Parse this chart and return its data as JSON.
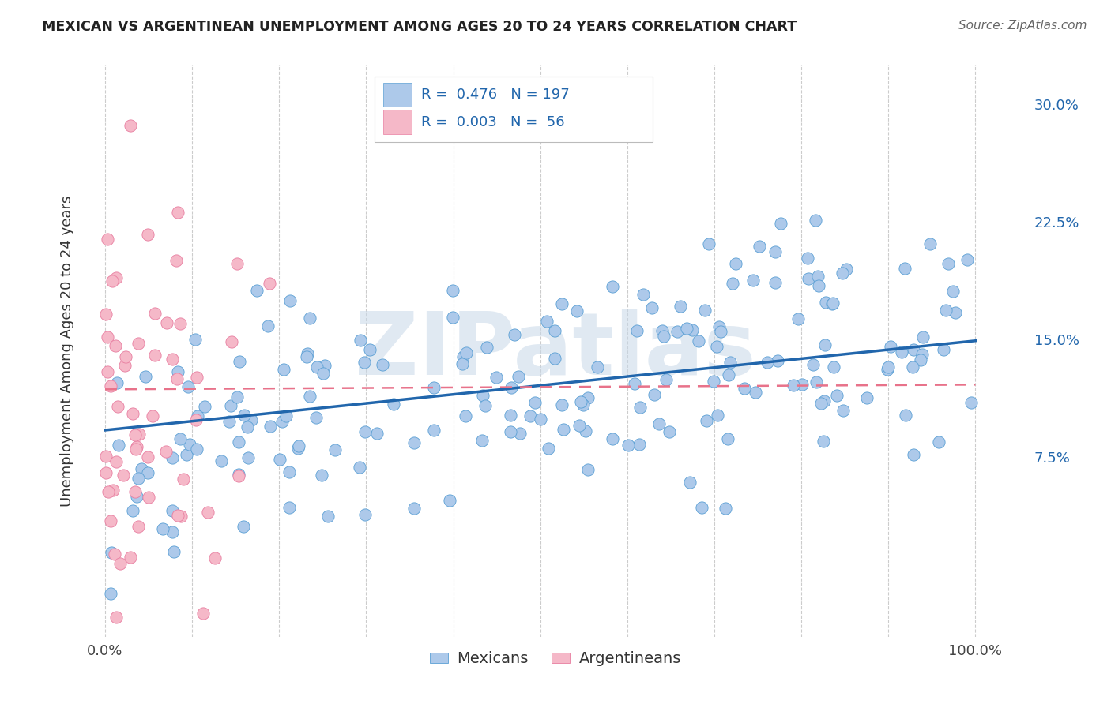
{
  "title": "MEXICAN VS ARGENTINEAN UNEMPLOYMENT AMONG AGES 20 TO 24 YEARS CORRELATION CHART",
  "source": "Source: ZipAtlas.com",
  "ylabel": "Unemployment Among Ages 20 to 24 years",
  "x_ticks": [
    0.0,
    0.1,
    0.2,
    0.3,
    0.4,
    0.5,
    0.6,
    0.7,
    0.8,
    0.9,
    1.0
  ],
  "x_tick_labels": [
    "0.0%",
    "",
    "",
    "",
    "",
    "",
    "",
    "",
    "",
    "",
    "100.0%"
  ],
  "y_ticks": [
    0.0,
    0.075,
    0.15,
    0.225,
    0.3
  ],
  "y_tick_labels": [
    "",
    "7.5%",
    "15.0%",
    "22.5%",
    "30.0%"
  ],
  "xlim": [
    -0.025,
    1.06
  ],
  "ylim": [
    -0.04,
    0.325
  ],
  "legend_r_mexican": "0.476",
  "legend_n_mexican": "197",
  "legend_r_argentinean": "0.003",
  "legend_n_argentinean": "56",
  "mexican_color": "#adc9ea",
  "mexican_edge_color": "#5a9fd4",
  "mexican_line_color": "#2166ac",
  "argentinean_color": "#f5b8c8",
  "argentinean_edge_color": "#e87da0",
  "argentinean_line_color": "#e8728a",
  "watermark": "ZIPatlas",
  "background_color": "#ffffff",
  "grid_color": "#cccccc",
  "title_color": "#222222",
  "mexican_N": 197,
  "argentinean_N": 56,
  "mex_intercept": 0.092,
  "mex_slope": 0.057,
  "arg_intercept": 0.118,
  "arg_slope": 0.003
}
